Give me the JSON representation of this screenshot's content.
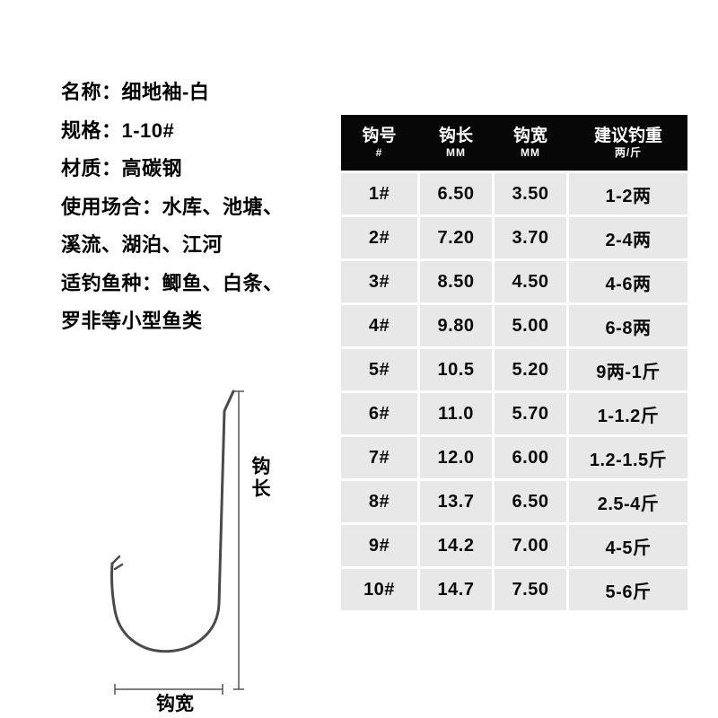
{
  "product": {
    "lines": [
      "名称：细地袖-白",
      "规格：1-10#",
      "材质：高碳钢",
      "使用场合：水库、池塘、",
      "溪流、湖泊、江河",
      "适钓鱼种：鲫鱼、白条、",
      "罗非等小型鱼类"
    ]
  },
  "diagram": {
    "length_label": "钩长",
    "width_label": "钩宽"
  },
  "table": {
    "columns": [
      {
        "title": "钩号",
        "sub": "#"
      },
      {
        "title": "钩长",
        "sub": "MM"
      },
      {
        "title": "钩宽",
        "sub": "MM"
      },
      {
        "title": "建议钓重",
        "sub": "两/斤"
      }
    ],
    "rows": [
      [
        "1#",
        "6.50",
        "3.50",
        "1-2两"
      ],
      [
        "2#",
        "7.20",
        "3.70",
        "2-4两"
      ],
      [
        "3#",
        "8.50",
        "4.50",
        "4-6两"
      ],
      [
        "4#",
        "9.80",
        "5.00",
        "6-8两"
      ],
      [
        "5#",
        "10.5",
        "5.20",
        "9两-1斤"
      ],
      [
        "6#",
        "11.0",
        "5.70",
        "1-1.2斤"
      ],
      [
        "7#",
        "12.0",
        "6.00",
        "1.2-1.5斤"
      ],
      [
        "8#",
        "13.7",
        "6.50",
        "2.5-4斤"
      ],
      [
        "9#",
        "14.2",
        "7.00",
        "4-5斤"
      ],
      [
        "10#",
        "14.7",
        "7.50",
        "5-6斤"
      ]
    ]
  },
  "colors": {
    "header_bg": "#070707",
    "header_text": "#ffffff",
    "row_bg": "#e8e8e8",
    "text": "#000000"
  }
}
